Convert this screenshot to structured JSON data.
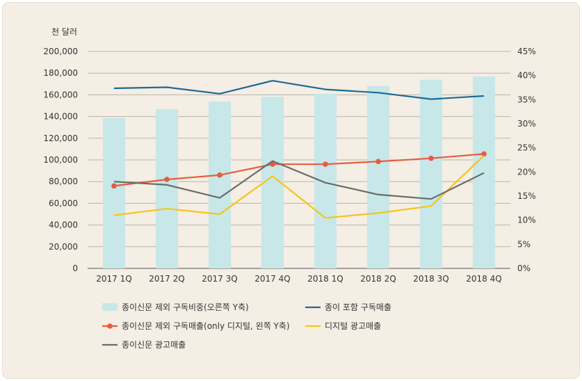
{
  "chart_data": {
    "type": "bar+line",
    "unit_label": "천 달러",
    "categories": [
      "2017 1Q",
      "2017 2Q",
      "2017 3Q",
      "2017 4Q",
      "2018 1Q",
      "2018 2Q",
      "2018 3Q",
      "2018 4Q"
    ],
    "left_axis": {
      "ylim": [
        0,
        200000
      ],
      "ticks": [
        "0",
        "20,000",
        "40,000",
        "60,000",
        "80,000",
        "100,000",
        "120,000",
        "140,000",
        "160,000",
        "180,000",
        "200,000"
      ]
    },
    "right_axis": {
      "ylim": [
        0,
        45
      ],
      "ticks": [
        "0%",
        "5%",
        "10%",
        "15%",
        "20%",
        "25%",
        "30%",
        "35%",
        "40%",
        "45%"
      ]
    },
    "grid": "horizontal",
    "legend_position": "bottom",
    "series": [
      {
        "name": "종이신문 제외 구독비중(오른쪽 Y축)",
        "type": "bar",
        "axis": "right",
        "color": "#c7e7e8",
        "values": [
          31.2,
          33.0,
          34.6,
          35.6,
          36.2,
          37.8,
          39.1,
          39.8
        ]
      },
      {
        "name": "종이 포함 구독매출",
        "type": "line",
        "axis": "left",
        "color": "#1d6a96",
        "values": [
          166000,
          167000,
          161000,
          173000,
          165000,
          162000,
          156000,
          159000
        ]
      },
      {
        "name": "종이신문 제외 구독매출(only 디지털, 왼쪽 Y축)",
        "type": "line-marker",
        "axis": "left",
        "color": "#e85b3f",
        "values": [
          76000,
          82000,
          86000,
          96000,
          96000,
          98500,
          101500,
          105500
        ]
      },
      {
        "name": "디지털 광고매출",
        "type": "line",
        "axis": "left",
        "color": "#f5c518",
        "values": [
          49000,
          55000,
          50000,
          85000,
          46500,
          51000,
          57500,
          104000
        ]
      },
      {
        "name": "종이신문 광고매출",
        "type": "line",
        "axis": "left",
        "color": "#6b6b6b",
        "values": [
          80000,
          77000,
          65000,
          99000,
          79000,
          68000,
          64000,
          88000
        ]
      }
    ]
  }
}
